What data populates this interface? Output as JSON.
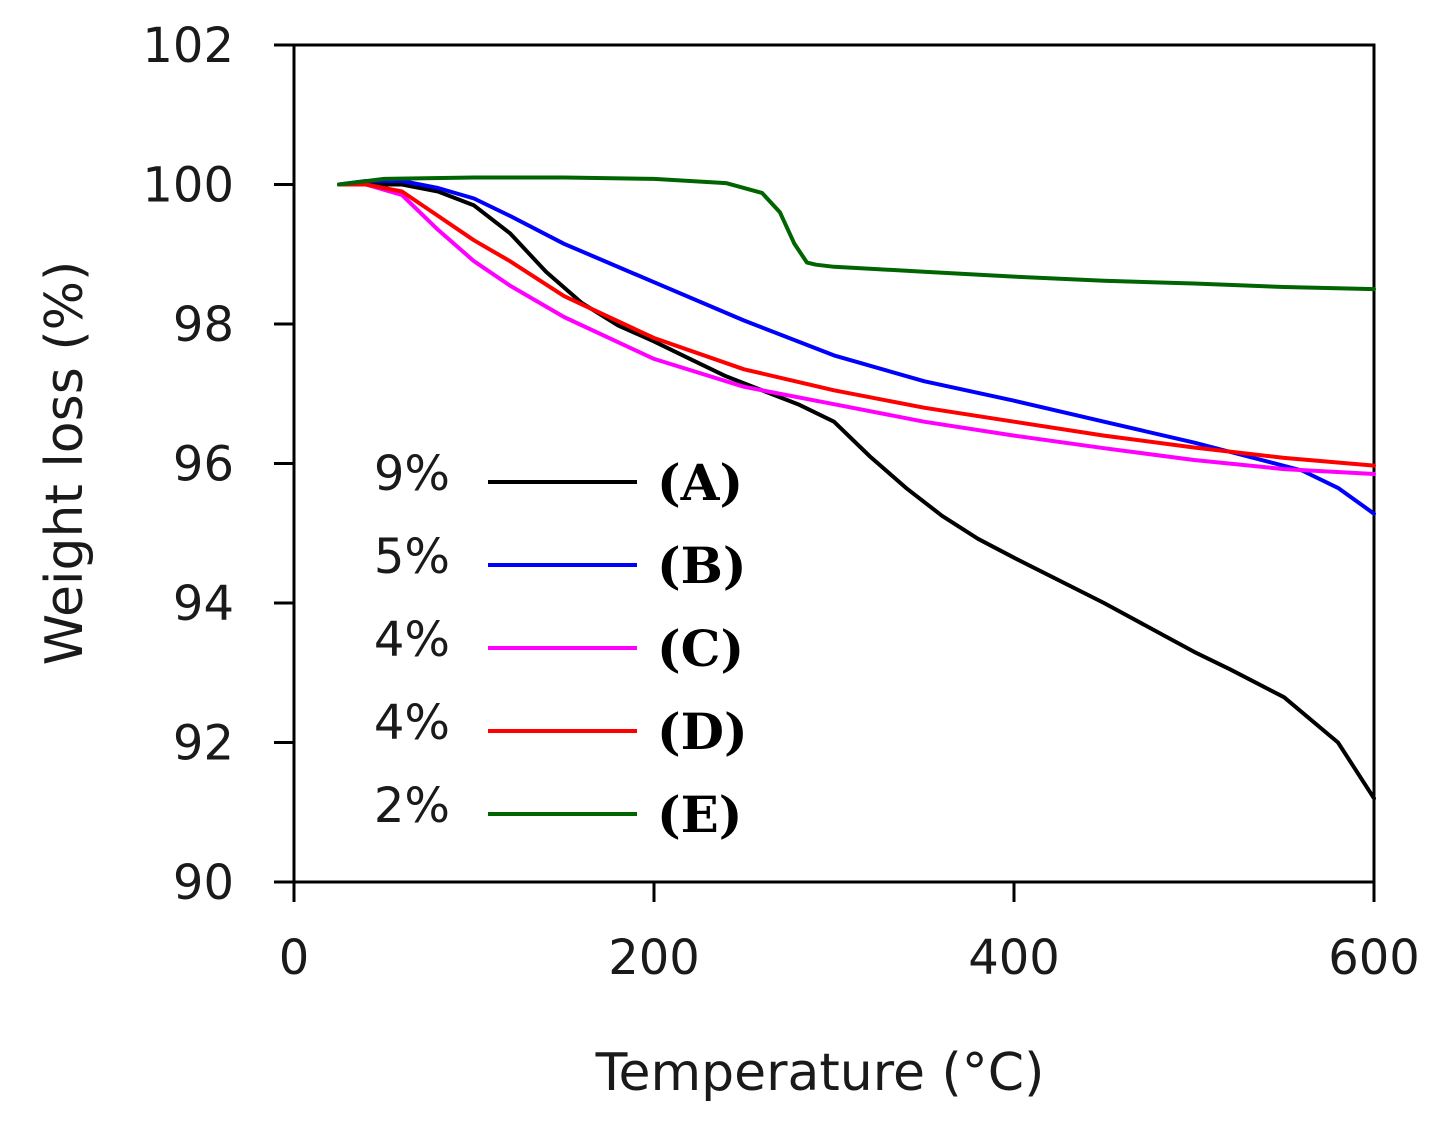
{
  "chart_data": {
    "type": "line",
    "title": "",
    "xlabel": "Temperature (°C)",
    "ylabel": "Weight loss (%)",
    "xlim": [
      0,
      600
    ],
    "ylim": [
      90,
      102
    ],
    "xticks": [
      0,
      200,
      400,
      600
    ],
    "yticks": [
      90,
      92,
      94,
      96,
      98,
      100,
      102
    ],
    "grid": false,
    "legend_position": "left",
    "series": [
      {
        "id": "(A)",
        "pct": "9%",
        "color": "#000000",
        "x": [
          25,
          40,
          60,
          80,
          100,
          120,
          140,
          160,
          180,
          200,
          220,
          240,
          260,
          280,
          300,
          320,
          340,
          360,
          380,
          400,
          450,
          500,
          520,
          550,
          580,
          600
        ],
        "y": [
          100.0,
          100.0,
          100.0,
          99.9,
          99.7,
          99.3,
          98.75,
          98.3,
          97.98,
          97.75,
          97.5,
          97.25,
          97.05,
          96.85,
          96.6,
          96.1,
          95.65,
          95.25,
          94.92,
          94.65,
          94.0,
          93.3,
          93.05,
          92.65,
          92.0,
          91.2
        ]
      },
      {
        "id": "(B)",
        "pct": "5%",
        "color": "#0000ff",
        "x": [
          25,
          40,
          60,
          80,
          100,
          120,
          150,
          200,
          250,
          300,
          350,
          400,
          450,
          500,
          530,
          560,
          580,
          600
        ],
        "y": [
          100.0,
          100.05,
          100.05,
          99.95,
          99.8,
          99.55,
          99.15,
          98.6,
          98.05,
          97.55,
          97.18,
          96.9,
          96.6,
          96.3,
          96.1,
          95.9,
          95.65,
          95.28
        ]
      },
      {
        "id": "(C)",
        "pct": "4%",
        "color": "#ff00ff",
        "x": [
          25,
          40,
          60,
          80,
          100,
          120,
          150,
          200,
          250,
          300,
          350,
          400,
          450,
          500,
          550,
          600
        ],
        "y": [
          100.0,
          100.0,
          99.85,
          99.35,
          98.9,
          98.55,
          98.1,
          97.5,
          97.1,
          96.85,
          96.6,
          96.4,
          96.22,
          96.05,
          95.92,
          95.85
        ]
      },
      {
        "id": "(D)",
        "pct": "4%",
        "color": "#ff0000",
        "x": [
          25,
          40,
          60,
          80,
          100,
          120,
          150,
          200,
          250,
          300,
          350,
          400,
          450,
          500,
          550,
          600
        ],
        "y": [
          100.0,
          100.0,
          99.9,
          99.55,
          99.2,
          98.9,
          98.4,
          97.8,
          97.35,
          97.05,
          96.8,
          96.6,
          96.4,
          96.23,
          96.08,
          95.97
        ]
      },
      {
        "id": "(E)",
        "pct": "2%",
        "color": "#006400",
        "x": [
          25,
          50,
          100,
          150,
          200,
          240,
          260,
          270,
          278,
          285,
          290,
          300,
          350,
          400,
          450,
          500,
          550,
          600
        ],
        "y": [
          100.0,
          100.08,
          100.1,
          100.1,
          100.08,
          100.02,
          99.88,
          99.6,
          99.15,
          98.88,
          98.85,
          98.82,
          98.75,
          98.68,
          98.62,
          98.58,
          98.53,
          98.5
        ]
      }
    ]
  }
}
